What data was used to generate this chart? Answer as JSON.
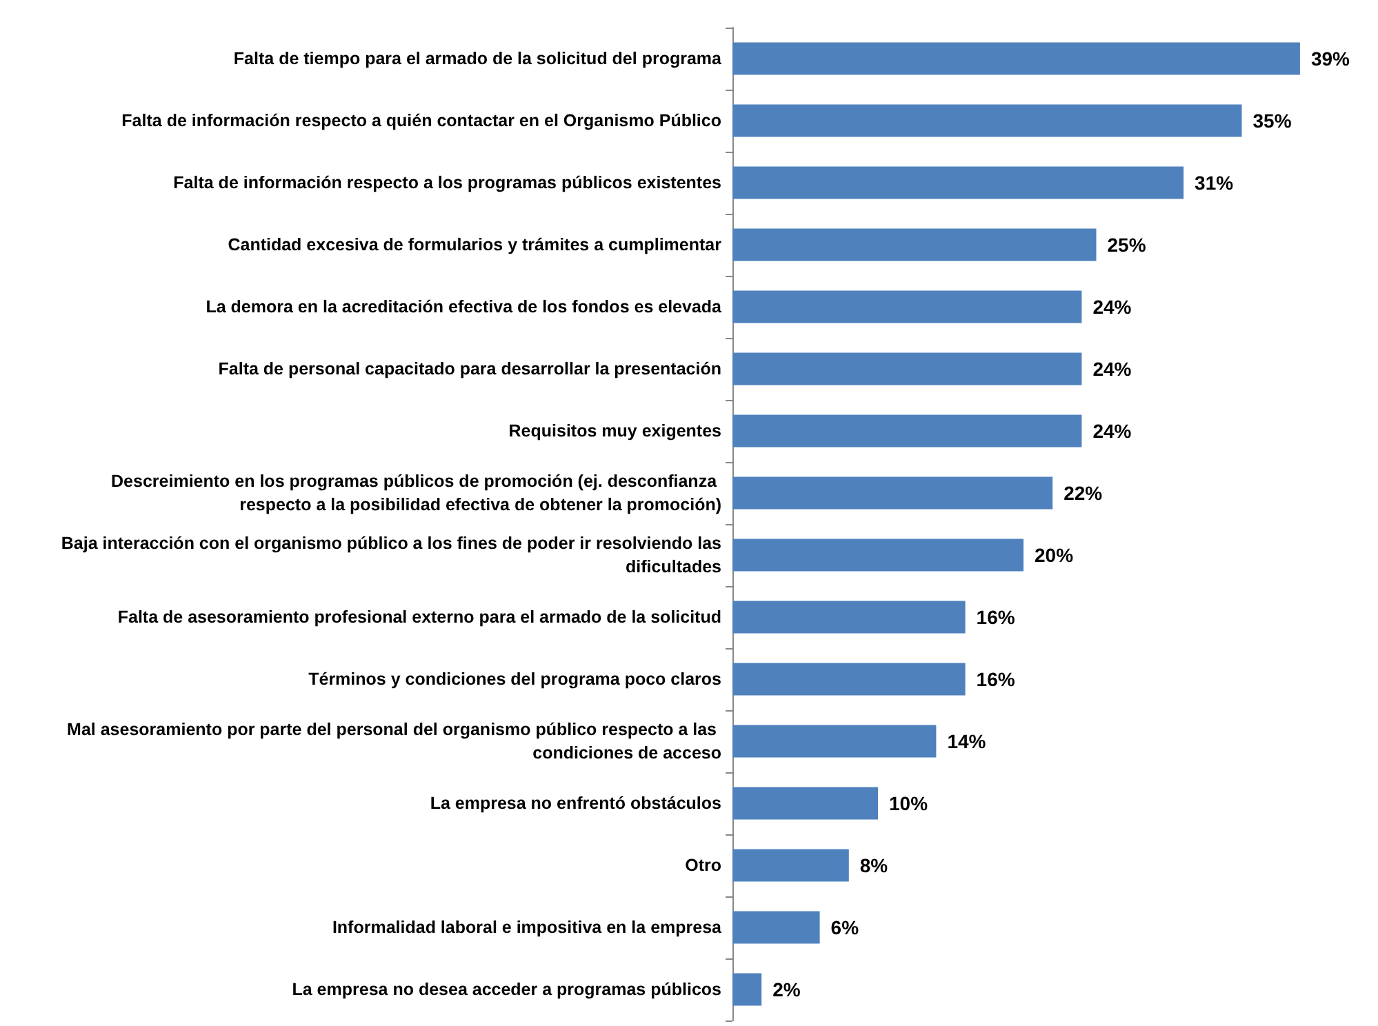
{
  "chart_data": {
    "type": "bar",
    "orientation": "horizontal",
    "color": "#4f81bd",
    "categories": [
      "Falta de tiempo para el armado de la solicitud del programa",
      "Falta de información respecto a quién contactar en el Organismo Público",
      "Falta de información respecto a los programas públicos existentes",
      "Cantidad excesiva de formularios y trámites a cumplimentar",
      "La demora en la acreditación efectiva de los fondos es elevada",
      "Falta de personal capacitado para desarrollar la presentación",
      "Requisitos muy exigentes",
      "Descreimiento en los programas públicos de promoción (ej. desconfianza respecto a la posibilidad efectiva de obtener la promoción)",
      "Baja interacción con el organismo público a los fines de poder ir resolviendo las dificultades",
      "Falta de asesoramiento profesional externo para el armado de la solicitud",
      "Términos y condiciones del programa poco claros",
      "Mal asesoramiento por parte del personal del organismo público respecto a las condiciones de acceso",
      "La empresa no enfrentó obstáculos",
      "Otro",
      "Informalidad laboral e impositiva en la empresa",
      "La empresa no desea acceder a programas públicos"
    ],
    "values": [
      39,
      35,
      31,
      25,
      24,
      24,
      24,
      22,
      20,
      16,
      16,
      14,
      10,
      8,
      6,
      2
    ],
    "value_labels": [
      "39%",
      "35%",
      "31%",
      "25%",
      "24%",
      "24%",
      "24%",
      "22%",
      "20%",
      "16%",
      "16%",
      "14%",
      "10%",
      "8%",
      "6%",
      "2%"
    ],
    "tick_labels": "y"
  }
}
